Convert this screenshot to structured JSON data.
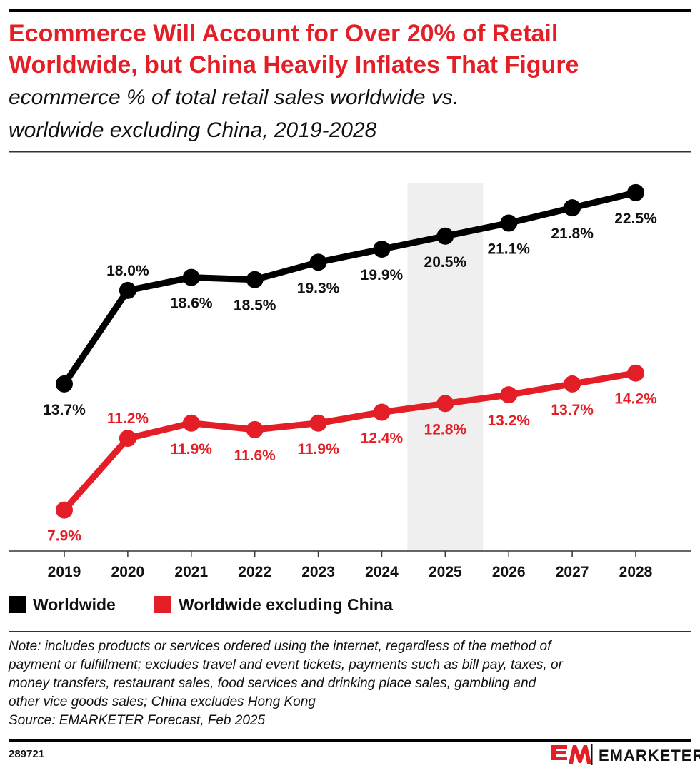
{
  "title_lines": [
    "Ecommerce Will Account for Over 20% of Retail",
    "Worldwide, but China Heavily Inflates That Figure"
  ],
  "subtitle_lines": [
    "ecommerce % of total retail sales worldwide vs.",
    "worldwide excluding China, 2019-2028"
  ],
  "chart_data": {
    "type": "line",
    "title": "Ecommerce Will Account for Over 20% of Retail Worldwide, but China Heavily Inflates That Figure",
    "subtitle": "ecommerce % of total retail sales worldwide vs. worldwide excluding China, 2019-2028",
    "categories": [
      "2019",
      "2020",
      "2021",
      "2022",
      "2023",
      "2024",
      "2025",
      "2026",
      "2027",
      "2028"
    ],
    "highlight_category": "2025",
    "ylim": [
      6,
      24.3
    ],
    "grid": false,
    "legend_position": "bottom-left",
    "series": [
      {
        "name": "Worldwide",
        "color": "#000000",
        "values": [
          13.7,
          18.0,
          18.6,
          18.5,
          19.3,
          19.9,
          20.5,
          21.1,
          21.8,
          22.5
        ],
        "labels": [
          "13.7%",
          "18.0%",
          "18.6%",
          "18.5%",
          "19.3%",
          "19.9%",
          "20.5%",
          "21.1%",
          "21.8%",
          "22.5%"
        ]
      },
      {
        "name": "Worldwide excluding China",
        "color": "#e41e26",
        "values": [
          7.9,
          11.2,
          11.9,
          11.6,
          11.9,
          12.4,
          12.8,
          13.2,
          13.7,
          14.2
        ],
        "labels": [
          "7.9%",
          "11.2%",
          "11.9%",
          "11.6%",
          "11.9%",
          "12.4%",
          "12.8%",
          "13.2%",
          "13.7%",
          "14.2%"
        ]
      }
    ]
  },
  "note_lines": [
    "Note: includes products or services ordered using the internet, regardless of the method of",
    "payment or fulfillment; excludes travel and event tickets, payments such as bill pay, taxes, or",
    "money transfers, restaurant sales, food services and drinking place sales, gambling and",
    "other vice goods sales; China excludes Hong Kong",
    "Source: EMARKETER Forecast, Feb 2025"
  ],
  "chart_id": "289721",
  "brand": "EMARKETER"
}
